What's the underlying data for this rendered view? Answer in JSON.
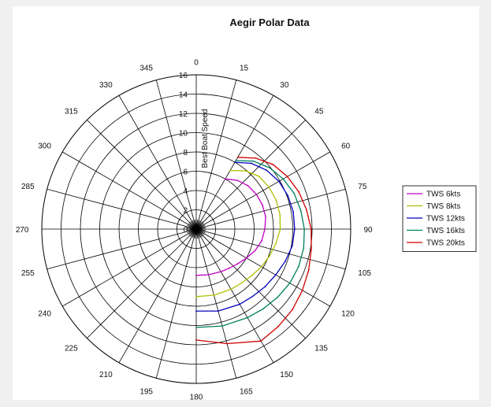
{
  "chart_data": {
    "type": "polar-line",
    "title": "Aegir Polar Data",
    "rlabel": "Best Boat Speed",
    "rlim": [
      0,
      16
    ],
    "r_ticks": [
      "0",
      "2",
      "4",
      "6",
      "8",
      "10",
      "12",
      "14",
      "16"
    ],
    "theta_ticks": [
      "0",
      "15",
      "30",
      "45",
      "60",
      "75",
      "90",
      "105",
      "120",
      "135",
      "150",
      "165",
      "180",
      "195",
      "210",
      "225",
      "240",
      "255",
      "270",
      "285",
      "300",
      "315",
      "330",
      "345"
    ],
    "theta_zero": "top",
    "theta_direction": "clockwise",
    "grid": true,
    "legend_position": "right",
    "series": [
      {
        "name": "TWS 6kts",
        "color": "#c000c0",
        "points": [
          [
            30,
            6.0
          ],
          [
            40,
            6.6
          ],
          [
            50,
            7.0
          ],
          [
            60,
            7.2
          ],
          [
            70,
            7.3
          ],
          [
            80,
            7.3
          ],
          [
            90,
            7.1
          ],
          [
            100,
            6.9
          ],
          [
            110,
            6.5
          ],
          [
            120,
            6.0
          ],
          [
            130,
            5.6
          ],
          [
            140,
            5.3
          ],
          [
            150,
            5.1
          ],
          [
            165,
            4.9
          ],
          [
            180,
            4.8
          ]
        ]
      },
      {
        "name": "TWS 8kts",
        "color": "#b0c000",
        "points": [
          [
            30,
            7.0
          ],
          [
            40,
            7.9
          ],
          [
            50,
            8.5
          ],
          [
            60,
            8.7
          ],
          [
            70,
            8.8
          ],
          [
            80,
            8.8
          ],
          [
            90,
            8.7
          ],
          [
            100,
            8.4
          ],
          [
            110,
            8.1
          ],
          [
            120,
            7.8
          ],
          [
            130,
            7.5
          ],
          [
            140,
            7.3
          ],
          [
            150,
            7.2
          ],
          [
            165,
            7.1
          ],
          [
            180,
            7.0
          ]
        ]
      },
      {
        "name": "TWS 12kts",
        "color": "#0000c0",
        "points": [
          [
            30,
            8.0
          ],
          [
            40,
            8.9
          ],
          [
            50,
            9.5
          ],
          [
            60,
            9.9
          ],
          [
            70,
            10.1
          ],
          [
            80,
            10.2
          ],
          [
            90,
            10.2
          ],
          [
            100,
            10.1
          ],
          [
            110,
            9.8
          ],
          [
            120,
            9.5
          ],
          [
            130,
            9.3
          ],
          [
            140,
            9.1
          ],
          [
            150,
            9.0
          ],
          [
            165,
            8.8
          ],
          [
            180,
            8.5
          ]
        ]
      },
      {
        "name": "TWS 16kts",
        "color": "#008060",
        "points": [
          [
            30,
            8.2
          ],
          [
            40,
            9.2
          ],
          [
            50,
            9.9
          ],
          [
            60,
            10.4
          ],
          [
            70,
            10.8
          ],
          [
            80,
            11.0
          ],
          [
            90,
            11.2
          ],
          [
            100,
            11.3
          ],
          [
            110,
            11.3
          ],
          [
            120,
            11.2
          ],
          [
            130,
            11.0
          ],
          [
            140,
            10.8
          ],
          [
            150,
            10.6
          ],
          [
            165,
            10.4
          ],
          [
            180,
            10.2
          ]
        ]
      },
      {
        "name": "TWS 20kts",
        "color": "#d00000",
        "points": [
          [
            30,
            8.6
          ],
          [
            40,
            9.6
          ],
          [
            50,
            10.4
          ],
          [
            60,
            10.9
          ],
          [
            70,
            11.3
          ],
          [
            80,
            11.6
          ],
          [
            90,
            11.9
          ],
          [
            100,
            12.1
          ],
          [
            110,
            12.4
          ],
          [
            120,
            12.7
          ],
          [
            130,
            13.0
          ],
          [
            140,
            13.2
          ],
          [
            150,
            13.4
          ],
          [
            165,
            12.3
          ],
          [
            180,
            11.5
          ]
        ]
      }
    ]
  }
}
